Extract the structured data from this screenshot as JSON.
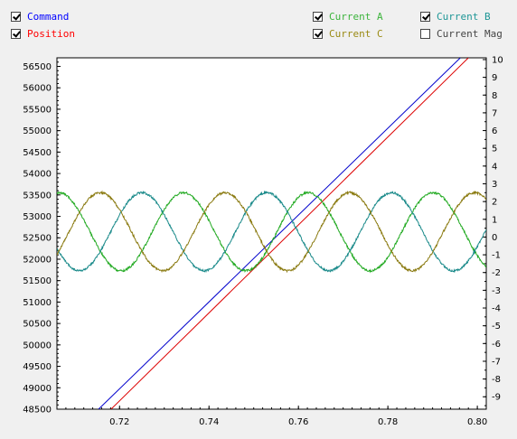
{
  "legend": {
    "items": [
      {
        "key": "command",
        "label": "Command",
        "checked": true,
        "color": "#0000ff"
      },
      {
        "key": "position",
        "label": "Position",
        "checked": true,
        "color": "#ff0000"
      },
      {
        "key": "current_a",
        "label": "Current A",
        "checked": true,
        "color": "#3cb43c"
      },
      {
        "key": "current_c",
        "label": "Current C",
        "checked": true,
        "color": "#9a8a14"
      },
      {
        "key": "current_b",
        "label": "Current B",
        "checked": true,
        "color": "#1e9696"
      },
      {
        "key": "current_mag",
        "label": "Current Mag",
        "checked": false,
        "color": "#444444"
      }
    ]
  },
  "chart_data": {
    "type": "line",
    "title": "",
    "xlabel": "",
    "ylabel": "",
    "xlim": [
      0.706,
      0.802
    ],
    "ylim_left": [
      48500,
      56700
    ],
    "ylim_right": [
      -9.7,
      10.1
    ],
    "x_ticks": [
      "0.72",
      "0.74",
      "0.76",
      "0.78",
      "0.80"
    ],
    "y_ticks_left": [
      "48500",
      "49000",
      "49500",
      "50000",
      "50500",
      "51000",
      "51500",
      "52000",
      "52500",
      "53000",
      "53500",
      "54000",
      "54500",
      "55000",
      "55500",
      "56000",
      "56500"
    ],
    "y_ticks_right": [
      "-9",
      "-8",
      "-7",
      "-6",
      "-5",
      "-4",
      "-3",
      "-2",
      "-1",
      "0",
      "1",
      "2",
      "3",
      "4",
      "5",
      "6",
      "7",
      "8",
      "9",
      "10"
    ],
    "series": [
      {
        "name": "Command",
        "axis": "left",
        "color": "#0000cc",
        "x": [
          0.7153,
          0.7962
        ],
        "y": [
          48500,
          56700
        ]
      },
      {
        "name": "Position",
        "axis": "left",
        "color": "#dd0000",
        "x": [
          0.7181,
          0.798
        ],
        "y": [
          48500,
          56700
        ]
      },
      {
        "name": "Current A",
        "axis": "right",
        "color": "#22aa22",
        "amplitude": 2.2,
        "offset": 0.3,
        "period": 0.0279,
        "phase_x": 0.7064
      },
      {
        "name": "Current B",
        "axis": "right",
        "color": "#1a8a8a",
        "amplitude": 2.2,
        "offset": 0.3,
        "period": 0.0279,
        "phase_x": 0.725
      },
      {
        "name": "Current C",
        "axis": "right",
        "color": "#8a7a10",
        "amplitude": 2.2,
        "offset": 0.3,
        "period": 0.0279,
        "phase_x": 0.7157
      }
    ]
  }
}
